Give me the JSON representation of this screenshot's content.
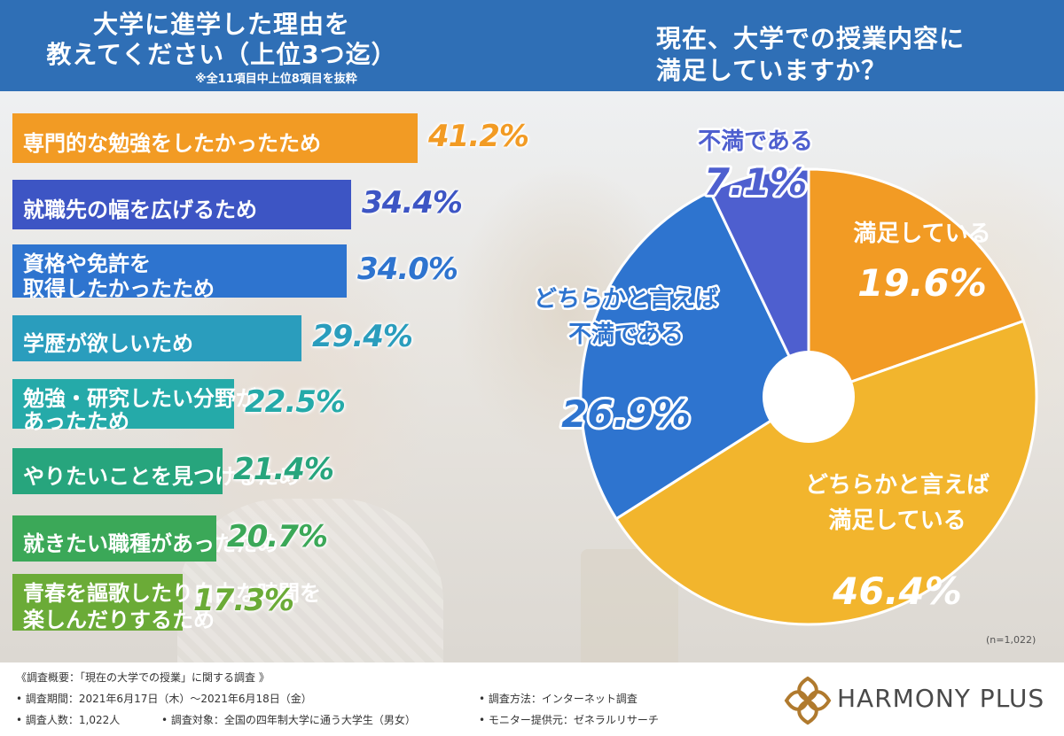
{
  "header": {
    "left_title_line1": "大学に進学した理由を",
    "left_title_line2": "教えてください（上位3つ迄）",
    "left_note": "※全11項目中上位8項目を抜粋",
    "right_title_line1": "現在、大学での授業内容に",
    "right_title_line2": "満足していますか？"
  },
  "chart_data": [
    {
      "type": "bar",
      "orientation": "horizontal",
      "title": "大学に進学した理由を 教えてください（上位3つ迄）",
      "categories": [
        "専門的な勉強をしたかったため",
        "就職先の幅を広げるため",
        "資格や免許を取得したかったため",
        "学歴が欲しいため",
        "勉強・研究したい分野があったため",
        "やりたいことを見つけるため",
        "就きたい職種があったため",
        "青春を謳歌したり自由な時間を楽しんだりするため"
      ],
      "label_lines": [
        [
          "専門的な勉強をしたかったため"
        ],
        [
          "就職先の幅を広げるため"
        ],
        [
          "資格や免許を",
          "取得したかったため"
        ],
        [
          "学歴が欲しいため"
        ],
        [
          "勉強・研究したい分野が",
          "あったため"
        ],
        [
          "やりたいことを見つけるため"
        ],
        [
          "就きたい職種があったため"
        ],
        [
          "青春を謳歌したり自由な時間を",
          "楽しんだりするため"
        ]
      ],
      "values": [
        41.2,
        34.4,
        34.0,
        29.4,
        22.5,
        21.4,
        20.7,
        17.3
      ],
      "value_labels": [
        "41.2%",
        "34.4%",
        "34.0%",
        "29.4%",
        "22.5%",
        "21.4%",
        "20.7%",
        "17.3%"
      ],
      "colors": [
        "#f29b24",
        "#3d55c4",
        "#2e74cf",
        "#2a9dbd",
        "#25aaa9",
        "#27a57d",
        "#3ba858",
        "#6bab37"
      ],
      "value_colors": [
        "#f29b24",
        "#3d55c4",
        "#2e74cf",
        "#2a9dbd",
        "#25aaa9",
        "#27a57d",
        "#3ba858",
        "#6bab37"
      ],
      "xlim": [
        0,
        45
      ]
    },
    {
      "type": "pie",
      "style": "donut",
      "title": "現在、大学での授業内容に 満足していますか？",
      "categories": [
        "満足している",
        "どちらかと言えば満足している",
        "どちらかと言えば不満である",
        "不満である"
      ],
      "label_lines": [
        [
          "満足している"
        ],
        [
          "どちらかと言えば",
          "満足している"
        ],
        [
          "どちらかと言えば",
          "不満である"
        ],
        [
          "不満である"
        ]
      ],
      "values": [
        19.6,
        46.4,
        26.9,
        7.1
      ],
      "value_labels": [
        "19.6%",
        "46.4%",
        "26.9%",
        "7.1%"
      ],
      "colors": [
        "#f29b24",
        "#f2b52d",
        "#2e74cf",
        "#4e5fcf"
      ],
      "note": "(n=1,022)"
    }
  ],
  "footer": {
    "summary": "《調査概要：「現在の大学での授業」に関する調査 》",
    "period": "• 調査期間：2021年6月17日（木）～2021年6月18日（金）",
    "method": "• 調査方法：インターネット調査",
    "count": "• 調査人数：1,022人",
    "target": "• 調査対象：全国の四年制大学に通う大学生（男女）",
    "provider": "• モニター提供元：ゼネラルリサーチ",
    "logo_text": "HARMONY PLUS",
    "logo_color": "#b07a2e"
  }
}
